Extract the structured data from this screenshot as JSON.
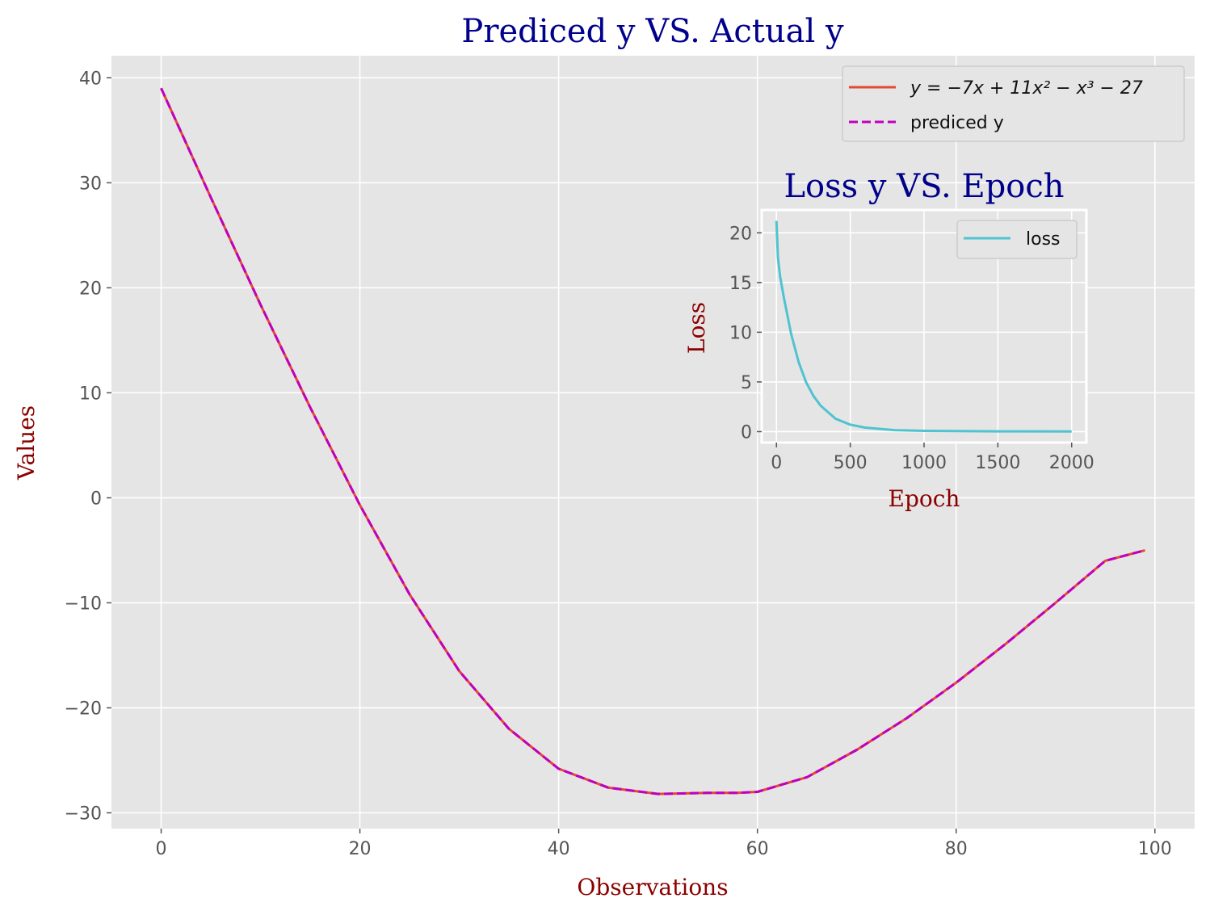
{
  "chart_data": [
    {
      "type": "line",
      "title": "Prediced y VS. Actual y",
      "xlabel": "Observations",
      "ylabel": "Values",
      "xlim": [
        -5,
        104
      ],
      "ylim": [
        -31.5,
        42.1
      ],
      "xticks": [
        0,
        20,
        40,
        60,
        80,
        100
      ],
      "yticks": [
        -30,
        -20,
        -10,
        0,
        10,
        20,
        30,
        40
      ],
      "grid": true,
      "legend": "top-right",
      "series": [
        {
          "name": "y = −7x + 11x² − x³ − 27",
          "style": "solid",
          "color": "#e24a33",
          "x": [
            0,
            5,
            10,
            15,
            20,
            25,
            30,
            35,
            40,
            45,
            50,
            55,
            58,
            60,
            65,
            70,
            75,
            80,
            85,
            90,
            95,
            99
          ],
          "y": [
            39,
            28.6,
            18.4,
            8.6,
            -0.7,
            -9.2,
            -16.5,
            -22.0,
            -25.8,
            -27.6,
            -28.2,
            -28.1,
            -28.1,
            -28.0,
            -26.6,
            -24.0,
            -21.0,
            -17.6,
            -13.9,
            -10.0,
            -6.0,
            -5.0
          ]
        },
        {
          "name": "prediced y",
          "style": "dashed",
          "color": "#bf00bf",
          "x": [
            0,
            5,
            10,
            15,
            20,
            25,
            30,
            35,
            40,
            45,
            50,
            55,
            58,
            60,
            65,
            70,
            75,
            80,
            85,
            90,
            95,
            99
          ],
          "y": [
            39,
            28.6,
            18.4,
            8.6,
            -0.7,
            -9.2,
            -16.5,
            -22.0,
            -25.8,
            -27.6,
            -28.2,
            -28.1,
            -28.1,
            -28.0,
            -26.6,
            -24.0,
            -21.0,
            -17.6,
            -13.9,
            -10.0,
            -6.0,
            -5.0
          ]
        }
      ]
    },
    {
      "type": "line",
      "title": "Loss y VS. Epoch",
      "xlabel": "Epoch",
      "ylabel": "Loss",
      "xlim": [
        -100,
        2100
      ],
      "ylim": [
        -1.1,
        22.3
      ],
      "xticks": [
        0,
        500,
        1000,
        1500,
        2000
      ],
      "yticks": [
        0,
        5,
        10,
        15,
        20
      ],
      "grid": true,
      "legend": "top-right",
      "series": [
        {
          "name": "loss",
          "color": "#4fc3cf",
          "x": [
            0,
            10,
            25,
            50,
            100,
            150,
            200,
            250,
            300,
            400,
            500,
            600,
            800,
            1000,
            1500,
            2000
          ],
          "y": [
            21.2,
            17.5,
            15.6,
            13.5,
            9.8,
            7.0,
            5.0,
            3.6,
            2.6,
            1.3,
            0.7,
            0.4,
            0.15,
            0.08,
            0.03,
            0.02
          ]
        }
      ]
    }
  ]
}
